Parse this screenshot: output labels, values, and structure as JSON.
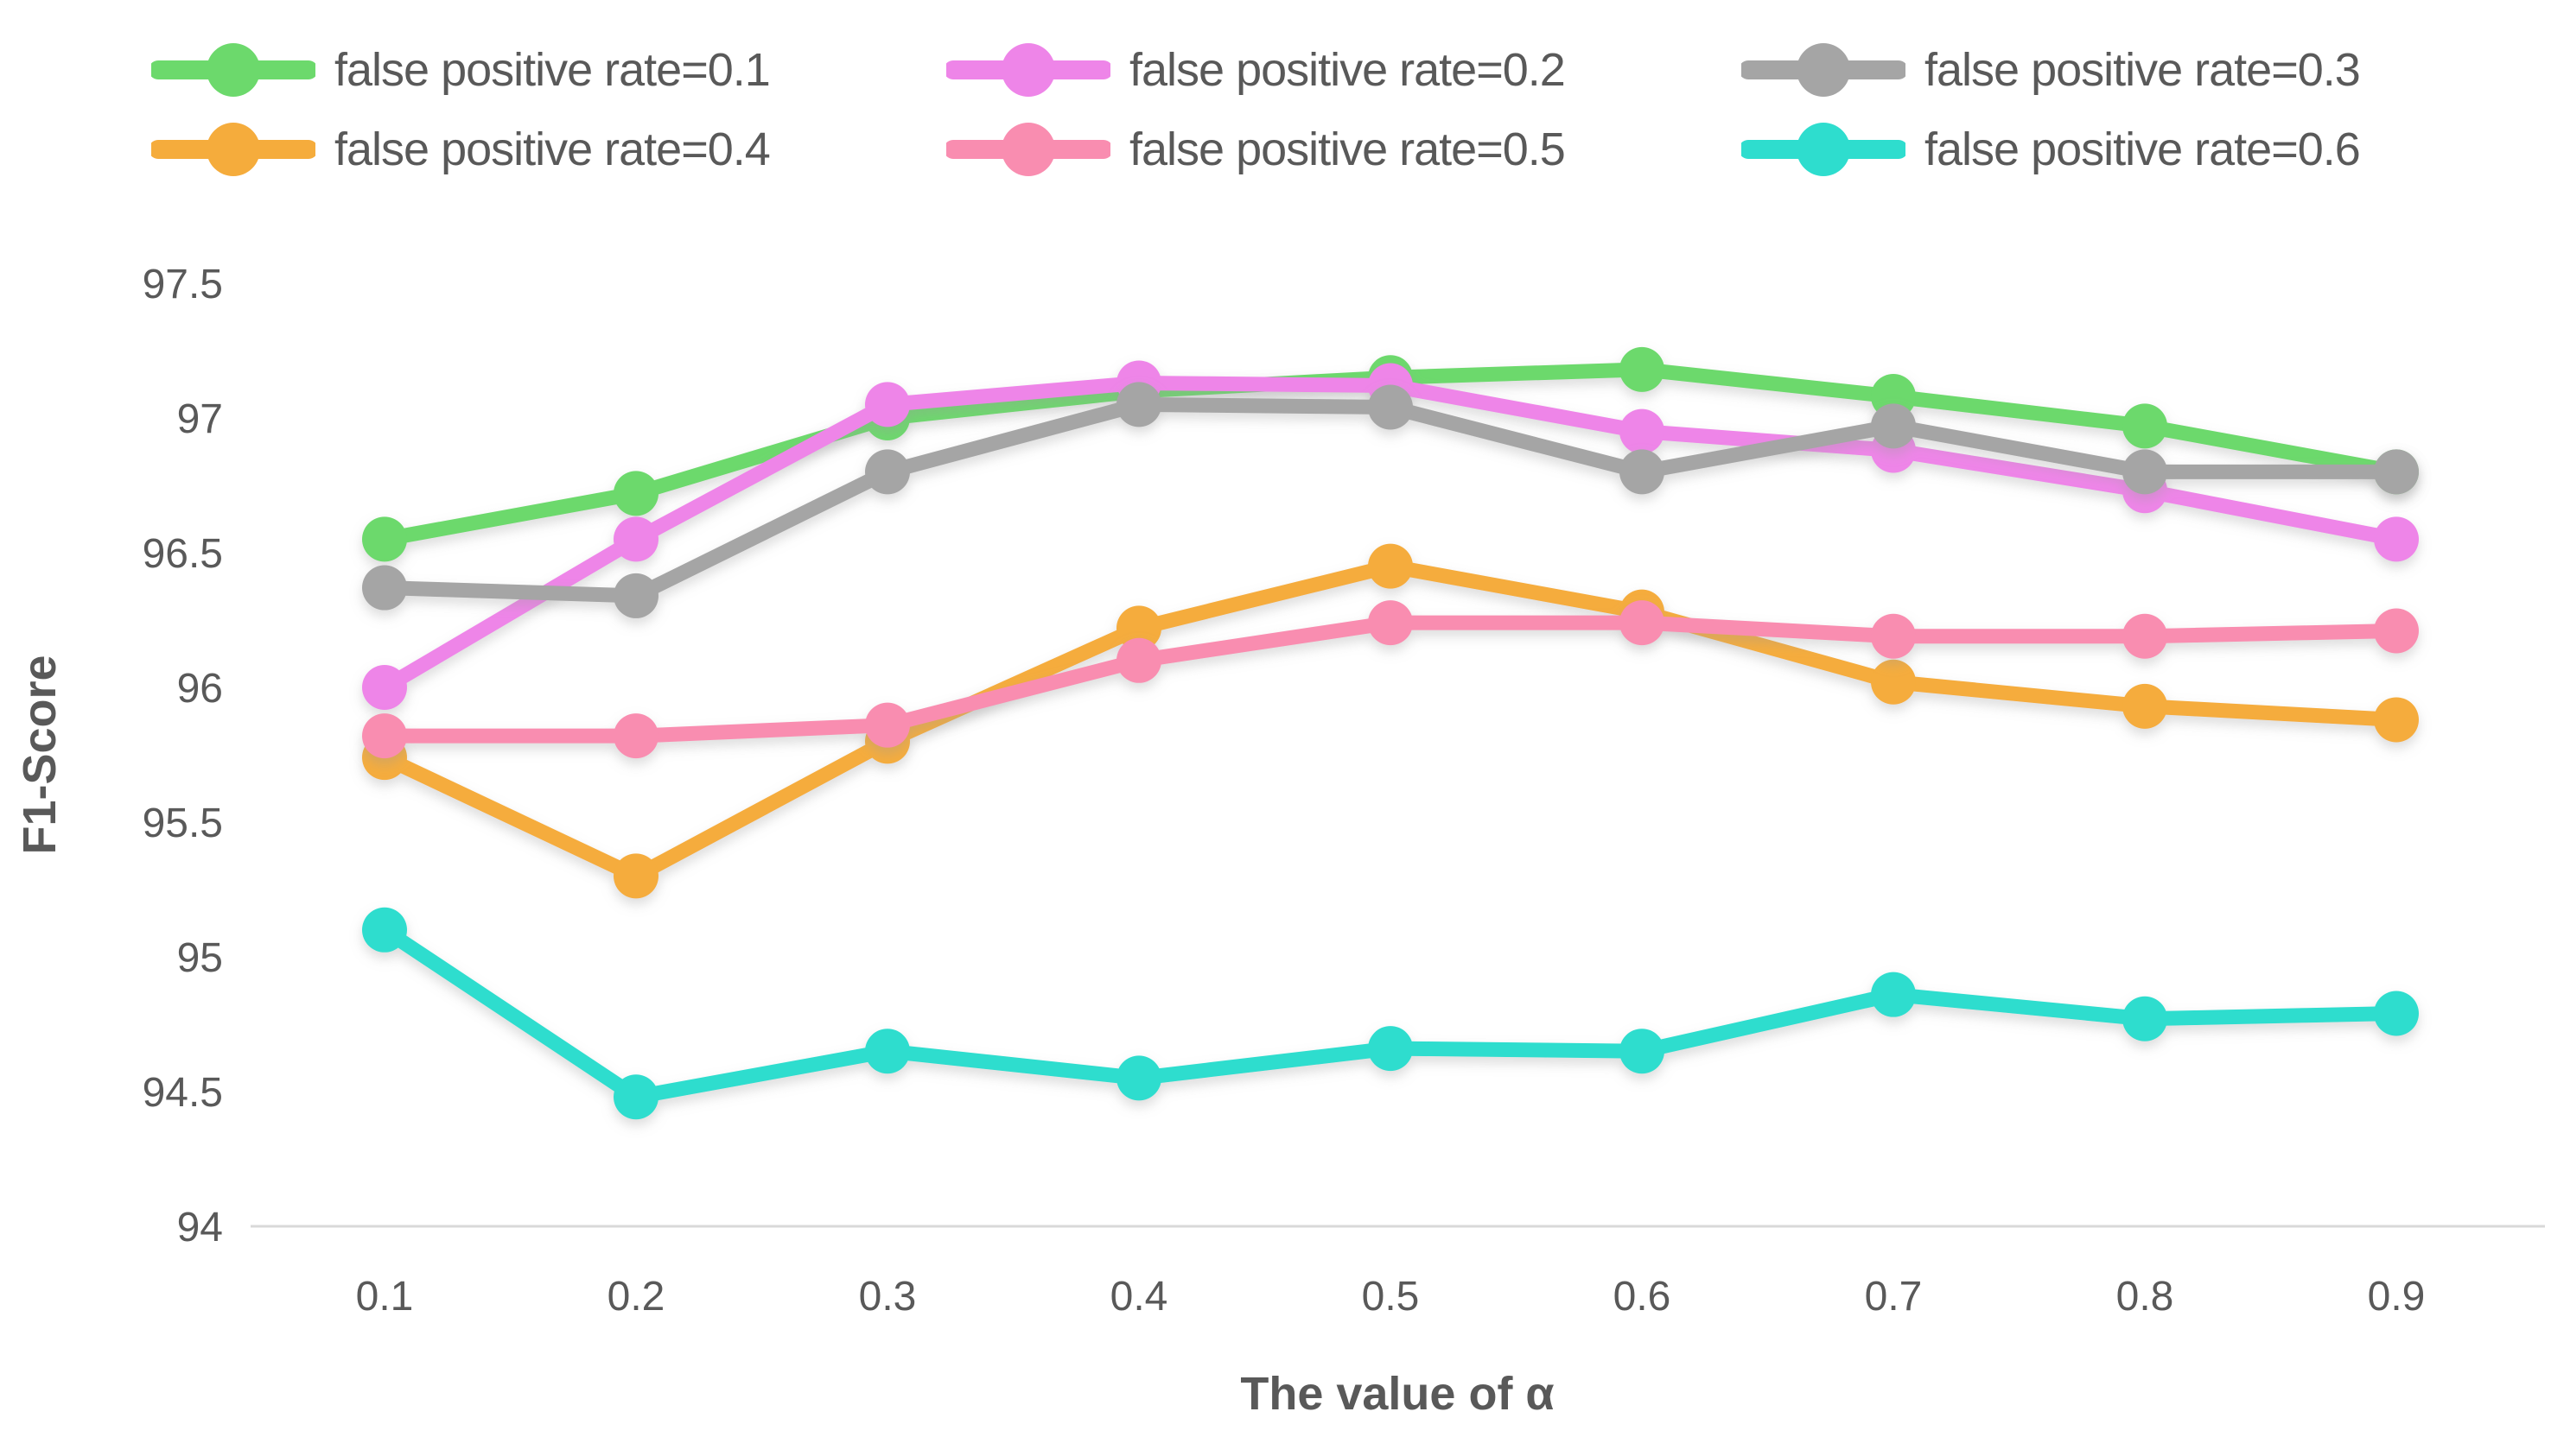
{
  "chart_data": {
    "type": "line",
    "title": "",
    "xlabel": "The value of α",
    "ylabel": "F1-Score",
    "x": [
      0.1,
      0.2,
      0.3,
      0.4,
      0.5,
      0.6,
      0.7,
      0.8,
      0.9
    ],
    "xtick_labels": [
      "0.1",
      "0.2",
      "0.3",
      "0.4",
      "0.5",
      "0.6",
      "0.7",
      "0.8",
      "0.9"
    ],
    "ylim": [
      94,
      97.5
    ],
    "yticks": [
      97.5,
      97,
      96.5,
      96,
      95.5,
      95,
      94.5,
      94
    ],
    "ytick_labels": [
      "97.5",
      "97",
      "96.5",
      "96",
      "95.5",
      "95",
      "94.5",
      "94"
    ],
    "grid": false,
    "baseline_at": 94,
    "legend_position": "top",
    "legend_rows": [
      [
        0,
        1,
        2
      ],
      [
        3,
        4,
        5
      ]
    ],
    "series": [
      {
        "name": "false positive rate=0.1",
        "color": "#6cd96c",
        "values": [
          96.55,
          96.72,
          97.0,
          97.1,
          97.15,
          97.18,
          97.08,
          96.97,
          96.8
        ]
      },
      {
        "name": "false positive rate=0.2",
        "color": "#ee85e8",
        "values": [
          96.0,
          96.55,
          97.05,
          97.13,
          97.12,
          96.95,
          96.88,
          96.73,
          96.55
        ]
      },
      {
        "name": "false positive rate=0.3",
        "color": "#a5a5a5",
        "values": [
          96.37,
          96.34,
          96.8,
          97.05,
          97.04,
          96.8,
          96.97,
          96.8,
          96.8
        ]
      },
      {
        "name": "false positive rate=0.4",
        "color": "#f5ac3c",
        "values": [
          95.74,
          95.3,
          95.8,
          96.22,
          96.45,
          96.28,
          96.02,
          95.93,
          95.88
        ]
      },
      {
        "name": "false positive rate=0.5",
        "color": "#f98db0",
        "values": [
          95.82,
          95.82,
          95.86,
          96.1,
          96.24,
          96.24,
          96.19,
          96.19,
          96.21
        ]
      },
      {
        "name": "false positive rate=0.6",
        "color": "#2eddce",
        "values": [
          95.1,
          94.48,
          94.65,
          94.55,
          94.66,
          94.65,
          94.86,
          94.77,
          94.79
        ]
      }
    ]
  },
  "colors": {
    "text": "#595959",
    "axis_line": "#d9d9d9",
    "background": "#ffffff"
  }
}
